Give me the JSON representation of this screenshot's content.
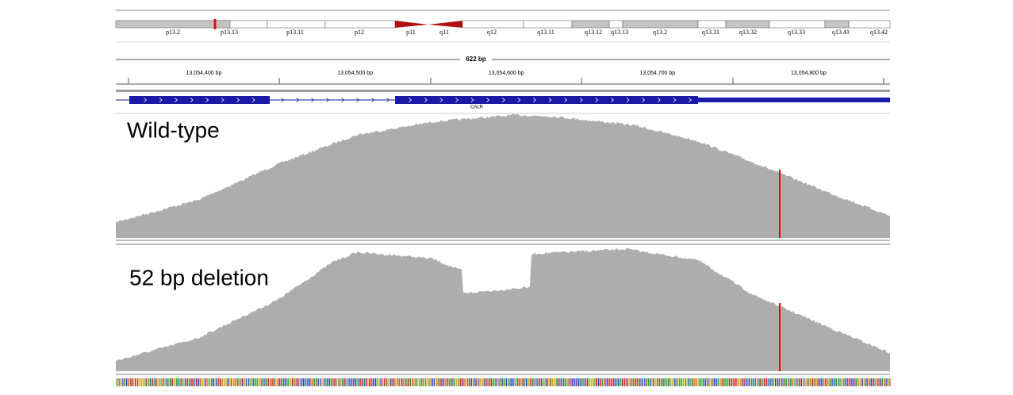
{
  "ideogram": {
    "bands": [
      "p13.2",
      "p13.13",
      "p13.11",
      "p12",
      "p11",
      "q11",
      "q12",
      "q13.11",
      "q13.12",
      "q13.13",
      "q13.2",
      "q13.31",
      "q13.32",
      "q13.33",
      "q13.41",
      "q13.42"
    ]
  },
  "ruler": {
    "span": "622 bp",
    "ticks": [
      "13,054,400 bp",
      "13,054,500 bp",
      "13,054,600 bp",
      "13,054,700 bp",
      "13,054,800 bp"
    ]
  },
  "gene": {
    "name": "CALR"
  },
  "tracks": [
    {
      "label": "Wild-type"
    },
    {
      "label": "52 bp deletion"
    }
  ]
}
